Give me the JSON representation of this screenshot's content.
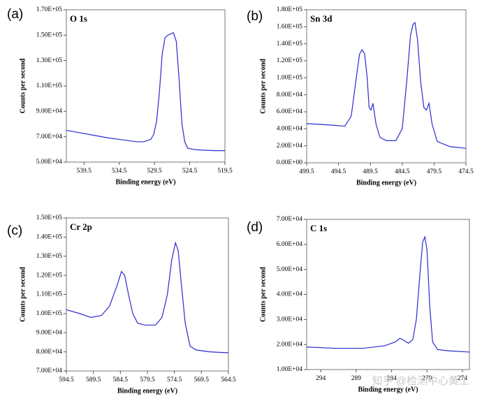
{
  "chart_data": [
    {
      "type": "line",
      "panel": "(a)",
      "title": "O 1s",
      "x_label": "Binding energy (eV)",
      "y_label": "Counts per second",
      "x": [
        542,
        540,
        538,
        536,
        534,
        532,
        531,
        530,
        529.6,
        529.2,
        528.8,
        528.4,
        528,
        527.6,
        527.2,
        526.8,
        526.4,
        526,
        525.6,
        525.2,
        524.8,
        524,
        523,
        521,
        519.5
      ],
      "values": [
        75000,
        73000,
        71000,
        69000,
        67500,
        66000,
        66000,
        68000,
        72000,
        82000,
        105000,
        135000,
        148000,
        150000,
        151000,
        152000,
        145000,
        115000,
        80000,
        66000,
        61000,
        60000,
        59500,
        59000,
        59000
      ],
      "color": "#2b2bd0",
      "xlim": [
        542,
        519.5
      ],
      "xticks": [
        539.5,
        534.5,
        529.5,
        524.5,
        519.5
      ],
      "ylim": [
        50000,
        170000
      ],
      "yticks": [
        {
          "value": 50000,
          "label": "5.00E+04"
        },
        {
          "value": 70000,
          "label": "7.00E+04"
        },
        {
          "value": 90000,
          "label": "9.00E+04"
        },
        {
          "value": 110000,
          "label": "1.10E+05"
        },
        {
          "value": 130000,
          "label": "1.30E+05"
        },
        {
          "value": 150000,
          "label": "1.50E+05"
        },
        {
          "value": 170000,
          "label": "1.70E+05"
        }
      ]
    },
    {
      "type": "line",
      "panel": "(b)",
      "title": "Sn 3d",
      "x_label": "Binding energy (eV)",
      "y_label": "Counts per second",
      "x": [
        499.5,
        497,
        495,
        493.5,
        492.5,
        491.8,
        491.2,
        490.8,
        490.4,
        490,
        489.7,
        489.4,
        489.1,
        488.6,
        488,
        487,
        485.5,
        484.5,
        483.8,
        483.2,
        482.8,
        482.5,
        482.1,
        481.6,
        481.1,
        480.7,
        480.3,
        479.8,
        479,
        477,
        474.5
      ],
      "values": [
        46000,
        45000,
        44000,
        43000,
        55000,
        95000,
        128000,
        133000,
        128000,
        100000,
        65000,
        62000,
        70000,
        45000,
        30000,
        26000,
        26000,
        40000,
        95000,
        150000,
        163000,
        165000,
        145000,
        95000,
        65000,
        62000,
        70000,
        45000,
        25000,
        19000,
        17000
      ],
      "color": "#2b2bd0",
      "xlim": [
        499.5,
        474.5
      ],
      "xticks": [
        499.5,
        494.5,
        489.5,
        484.5,
        479.5,
        474.5
      ],
      "ylim": [
        0,
        180000
      ],
      "yticks": [
        {
          "value": 0,
          "label": "0.00E+00"
        },
        {
          "value": 20000,
          "label": "2.00E+04"
        },
        {
          "value": 40000,
          "label": "4.00E+04"
        },
        {
          "value": 60000,
          "label": "6.00E+04"
        },
        {
          "value": 80000,
          "label": "8.00E+04"
        },
        {
          "value": 100000,
          "label": "1.00E+05"
        },
        {
          "value": 120000,
          "label": "1.20E+05"
        },
        {
          "value": 140000,
          "label": "1.40E+05"
        },
        {
          "value": 160000,
          "label": "1.60E+05"
        },
        {
          "value": 180000,
          "label": "1.80E+05"
        }
      ]
    },
    {
      "type": "line",
      "panel": "(c)",
      "title": "Cr 2p",
      "x_label": "Binding energy (eV)",
      "y_label": "Counts per second",
      "x": [
        594.5,
        592,
        590,
        588,
        586.5,
        585.2,
        584.3,
        583.7,
        583,
        582.2,
        581.3,
        580,
        578,
        576.8,
        575.8,
        575,
        574.3,
        573.8,
        573.2,
        572.5,
        571.6,
        570.5,
        568,
        564.5
      ],
      "values": [
        102000,
        100000,
        98000,
        99000,
        104000,
        114000,
        122000,
        120000,
        110000,
        100000,
        95000,
        94000,
        94000,
        98000,
        110000,
        128000,
        137000,
        133000,
        115000,
        95000,
        83000,
        81000,
        80000,
        79500
      ],
      "color": "#2b2bd0",
      "xlim": [
        594.5,
        564.5
      ],
      "xticks": [
        594.5,
        589.5,
        584.5,
        579.5,
        574.5,
        569.5,
        564.5
      ],
      "ylim": [
        70000,
        150000
      ],
      "yticks": [
        {
          "value": 70000,
          "label": "7.00E+04"
        },
        {
          "value": 80000,
          "label": "8.00E+04"
        },
        {
          "value": 90000,
          "label": "9.00E+04"
        },
        {
          "value": 100000,
          "label": "1.00E+05"
        },
        {
          "value": 110000,
          "label": "1.10E+05"
        },
        {
          "value": 120000,
          "label": "1.20E+05"
        },
        {
          "value": 130000,
          "label": "1.30E+05"
        },
        {
          "value": 140000,
          "label": "1.40E+05"
        },
        {
          "value": 150000,
          "label": "1.50E+05"
        }
      ]
    },
    {
      "type": "line",
      "panel": "(d)",
      "title": "C 1s",
      "x_label": "Binding energy (eV)",
      "y_label": "Counts per second",
      "x": [
        296,
        292,
        288,
        285,
        283.5,
        282.8,
        282.2,
        281.6,
        281,
        280.5,
        280,
        279.6,
        279.3,
        279,
        278.6,
        278.2,
        277.5,
        276,
        273
      ],
      "values": [
        19000,
        18500,
        18500,
        19500,
        21000,
        22500,
        21500,
        20500,
        22000,
        30000,
        48000,
        61000,
        63000,
        58000,
        35000,
        21000,
        18000,
        17500,
        17000
      ],
      "color": "#2b2bd0",
      "xlim": [
        296,
        273
      ],
      "xticks": [
        294,
        289,
        284,
        279,
        274
      ],
      "ylim": [
        10000,
        70000
      ],
      "yticks": [
        {
          "value": 10000,
          "label": "1.00E+04"
        },
        {
          "value": 20000,
          "label": "2.00E+04"
        },
        {
          "value": 30000,
          "label": "3.00E+04"
        },
        {
          "value": 40000,
          "label": "4.00E+04"
        },
        {
          "value": 50000,
          "label": "5.00E+04"
        },
        {
          "value": 60000,
          "label": "6.00E+04"
        },
        {
          "value": 70000,
          "label": "7.00E+04"
        }
      ]
    }
  ],
  "watermark": "知乎 @检测中心黄工"
}
